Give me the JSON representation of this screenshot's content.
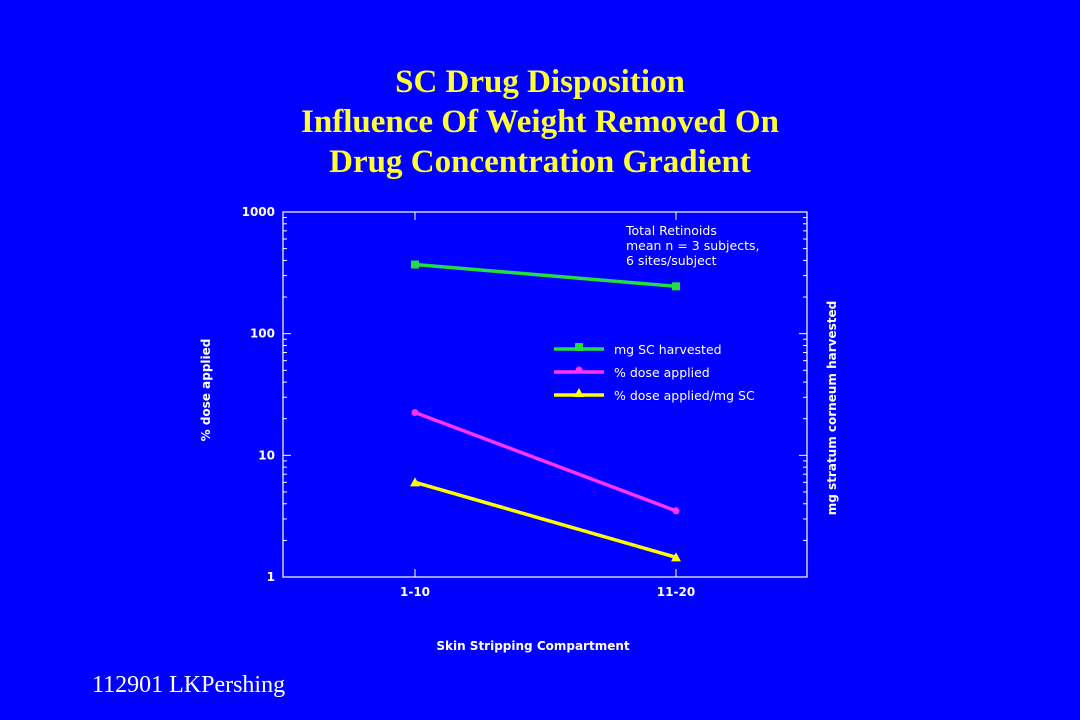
{
  "page": {
    "background": "#0000FF",
    "title_lines": [
      "SC Drug Disposition",
      "Influence Of Weight Removed On",
      "Drug Concentration Gradient"
    ],
    "title_color": "#FFFF33",
    "footer": "112901  LKPershing"
  },
  "chart_data": {
    "type": "line",
    "categories": [
      "1-10",
      "11-20"
    ],
    "series": [
      {
        "name": "mg SC harvested",
        "values": [
          370,
          245
        ],
        "color": "#22DD44",
        "marker": "square"
      },
      {
        "name": "% dose applied",
        "values": [
          22.5,
          3.5
        ],
        "color": "#FF33FF",
        "marker": "circle"
      },
      {
        "name": "% dose applied/mg SC",
        "values": [
          6.0,
          1.45
        ],
        "color": "#FFFF00",
        "marker": "triangle"
      }
    ],
    "xlabel": "Skin Stripping Compartment",
    "ylabel": "% dose applied",
    "y2label": "mg stratum corneum harvested",
    "ylim": [
      1,
      1000
    ],
    "yscale": "log",
    "yticks": [
      "1",
      "10",
      "100",
      "1000"
    ],
    "annotation": [
      "Total Retinoids",
      "mean n = 3 subjects,",
      "6 sites/subject"
    ],
    "legend_placement": "right",
    "grid": false
  }
}
